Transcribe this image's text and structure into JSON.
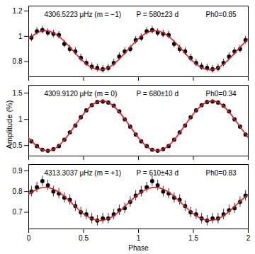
{
  "chart_data": [
    {
      "type": "scatter",
      "annotations": [
        "4306.5223 μHz (m = −1)",
        "P = 580±23 d",
        "Ph0=0.85"
      ],
      "xlim": [
        0,
        2
      ],
      "xticks": [
        0,
        0.5,
        1,
        1.5,
        2
      ],
      "ylim": [
        0.68,
        1.24
      ],
      "yticks": [
        0.8,
        1,
        1.2
      ],
      "tick_labels": "y",
      "series": [
        {
          "type": "scatter",
          "color": "#000000",
          "marker": "circle",
          "x": [
            0.025,
            0.075,
            0.125,
            0.175,
            0.225,
            0.275,
            0.325,
            0.375,
            0.425,
            0.475,
            0.525,
            0.575,
            0.625,
            0.675,
            0.725,
            0.775,
            0.825,
            0.875,
            0.925,
            0.975,
            1.025,
            1.075,
            1.125,
            1.175,
            1.225,
            1.275,
            1.325,
            1.375,
            1.425,
            1.475,
            1.525,
            1.575,
            1.625,
            1.675,
            1.725,
            1.775,
            1.825,
            1.875,
            1.925,
            1.975
          ],
          "values": [
            0.99,
            1.04,
            1.05,
            1.03,
            1.02,
            1.01,
            0.94,
            0.9,
            0.88,
            0.83,
            0.79,
            0.76,
            0.75,
            0.74,
            0.75,
            0.79,
            0.84,
            0.88,
            0.9,
            0.97,
            0.99,
            1.04,
            1.05,
            1.03,
            1.02,
            1.01,
            0.94,
            0.9,
            0.88,
            0.83,
            0.79,
            0.76,
            0.75,
            0.74,
            0.75,
            0.79,
            0.84,
            0.88,
            0.9,
            0.97
          ],
          "errors": [
            0.03,
            0.03,
            0.03,
            0.03,
            0.03,
            0.03,
            0.03,
            0.03,
            0.03,
            0.03,
            0.03,
            0.03,
            0.03,
            0.03,
            0.03,
            0.03,
            0.03,
            0.03,
            0.03,
            0.03,
            0.03,
            0.03,
            0.03,
            0.03,
            0.03,
            0.03,
            0.03,
            0.03,
            0.03,
            0.03,
            0.03,
            0.03,
            0.03,
            0.03,
            0.03,
            0.03,
            0.03,
            0.03,
            0.03,
            0.03
          ]
        },
        {
          "type": "line",
          "color": "#e41a1c",
          "line_style": "solid",
          "x": [
            0,
            0.1,
            0.2,
            0.3,
            0.4,
            0.5,
            0.6,
            0.7,
            0.8,
            0.9,
            1,
            1.1,
            1.2,
            1.3,
            1.4,
            1.5,
            1.6,
            1.7,
            1.8,
            1.9,
            2
          ],
          "values": [
            0.981,
            1.037,
            1.037,
            0.981,
            0.89,
            0.799,
            0.743,
            0.743,
            0.799,
            0.89,
            0.981,
            1.037,
            1.037,
            0.981,
            0.89,
            0.799,
            0.743,
            0.743,
            0.799,
            0.89,
            0.981
          ]
        }
      ]
    },
    {
      "type": "scatter",
      "annotations": [
        "4309.9120 μHz (m = 0)",
        "P = 680±10 d",
        "Ph0=0.34"
      ],
      "ylabel": "Amplitude (%)",
      "xlim": [
        0,
        2
      ],
      "xticks": [
        0,
        0.5,
        1,
        1.5,
        2
      ],
      "ylim": [
        0.3,
        1.65
      ],
      "yticks": [
        0.5,
        1,
        1.5
      ],
      "tick_labels": "y",
      "series": [
        {
          "type": "scatter",
          "color": "#000000",
          "marker": "circle",
          "x": [
            0.025,
            0.075,
            0.125,
            0.175,
            0.225,
            0.275,
            0.325,
            0.375,
            0.425,
            0.475,
            0.525,
            0.575,
            0.625,
            0.675,
            0.725,
            0.775,
            0.825,
            0.875,
            0.925,
            0.975,
            1.025,
            1.075,
            1.125,
            1.175,
            1.225,
            1.275,
            1.325,
            1.375,
            1.425,
            1.475,
            1.525,
            1.575,
            1.625,
            1.675,
            1.725,
            1.775,
            1.825,
            1.875,
            1.925,
            1.975
          ],
          "values": [
            0.58,
            0.49,
            0.42,
            0.4,
            0.43,
            0.49,
            0.61,
            0.75,
            0.88,
            1.04,
            1.17,
            1.27,
            1.33,
            1.34,
            1.32,
            1.26,
            1.15,
            1.0,
            0.86,
            0.71,
            0.58,
            0.49,
            0.42,
            0.4,
            0.43,
            0.49,
            0.61,
            0.75,
            0.88,
            1.04,
            1.17,
            1.27,
            1.33,
            1.34,
            1.32,
            1.26,
            1.15,
            1.0,
            0.86,
            0.71
          ],
          "errors": [
            0.03,
            0.03,
            0.03,
            0.03,
            0.03,
            0.03,
            0.03,
            0.03,
            0.03,
            0.03,
            0.03,
            0.03,
            0.03,
            0.03,
            0.03,
            0.03,
            0.03,
            0.03,
            0.03,
            0.03,
            0.03,
            0.03,
            0.03,
            0.03,
            0.03,
            0.03,
            0.03,
            0.03,
            0.03,
            0.03,
            0.03,
            0.03,
            0.03,
            0.03,
            0.03,
            0.03,
            0.03,
            0.03,
            0.03,
            0.03
          ]
        },
        {
          "type": "line",
          "color": "#e41a1c",
          "line_style": "solid",
          "x": [
            0,
            0.1,
            0.2,
            0.3,
            0.4,
            0.5,
            0.6,
            0.7,
            0.8,
            0.9,
            1,
            1.1,
            1.2,
            1.3,
            1.4,
            1.5,
            1.6,
            1.7,
            1.8,
            1.9,
            2
          ],
          "values": [
            0.646,
            0.445,
            0.409,
            0.55,
            0.816,
            1.104,
            1.305,
            1.341,
            1.2,
            0.934,
            0.646,
            0.445,
            0.409,
            0.55,
            0.816,
            1.104,
            1.305,
            1.341,
            1.2,
            0.934,
            0.646
          ]
        }
      ]
    },
    {
      "type": "scatter",
      "annotations": [
        "4313.3037 μHz (m = +1)",
        "P = 610±43 d",
        "Ph0=0.83"
      ],
      "xlabel": "Phase",
      "xlim": [
        0,
        2
      ],
      "xticks": [
        0,
        0.5,
        1,
        1.5,
        2
      ],
      "ylim": [
        0.62,
        0.93
      ],
      "yticks": [
        0.7,
        0.8,
        0.9
      ],
      "series": [
        {
          "type": "scatter",
          "color": "#000000",
          "marker": "circle",
          "x": [
            0.025,
            0.075,
            0.125,
            0.175,
            0.225,
            0.275,
            0.325,
            0.375,
            0.425,
            0.475,
            0.525,
            0.575,
            0.625,
            0.675,
            0.725,
            0.775,
            0.825,
            0.875,
            0.925,
            0.975,
            1.025,
            1.075,
            1.125,
            1.175,
            1.225,
            1.275,
            1.325,
            1.375,
            1.425,
            1.475,
            1.525,
            1.575,
            1.625,
            1.675,
            1.725,
            1.775,
            1.825,
            1.875,
            1.925,
            1.975
          ],
          "values": [
            0.8,
            0.82,
            0.85,
            0.83,
            0.8,
            0.79,
            0.77,
            0.76,
            0.73,
            0.7,
            0.69,
            0.67,
            0.66,
            0.67,
            0.67,
            0.69,
            0.71,
            0.72,
            0.75,
            0.78,
            0.8,
            0.82,
            0.85,
            0.83,
            0.8,
            0.79,
            0.77,
            0.76,
            0.73,
            0.7,
            0.69,
            0.67,
            0.66,
            0.67,
            0.67,
            0.69,
            0.71,
            0.72,
            0.75,
            0.78
          ],
          "errors": [
            0.025,
            0.025,
            0.025,
            0.025,
            0.025,
            0.025,
            0.025,
            0.025,
            0.025,
            0.025,
            0.025,
            0.025,
            0.025,
            0.025,
            0.025,
            0.025,
            0.025,
            0.025,
            0.025,
            0.025,
            0.025,
            0.025,
            0.025,
            0.025,
            0.025,
            0.025,
            0.025,
            0.025,
            0.025,
            0.025,
            0.025,
            0.025,
            0.025,
            0.025,
            0.025,
            0.025,
            0.025,
            0.025,
            0.025,
            0.025
          ]
        },
        {
          "type": "line",
          "color": "#e41a1c",
          "line_style": "solid",
          "x": [
            0,
            0.1,
            0.2,
            0.3,
            0.4,
            0.5,
            0.6,
            0.7,
            0.8,
            0.9,
            1,
            1.1,
            1.2,
            1.3,
            1.4,
            1.5,
            1.6,
            1.7,
            1.8,
            1.9,
            2
          ],
          "values": [
            0.787,
            0.816,
            0.816,
            0.787,
            0.74,
            0.693,
            0.664,
            0.664,
            0.693,
            0.74,
            0.787,
            0.816,
            0.816,
            0.787,
            0.74,
            0.693,
            0.664,
            0.664,
            0.693,
            0.74,
            0.787
          ]
        }
      ]
    }
  ]
}
